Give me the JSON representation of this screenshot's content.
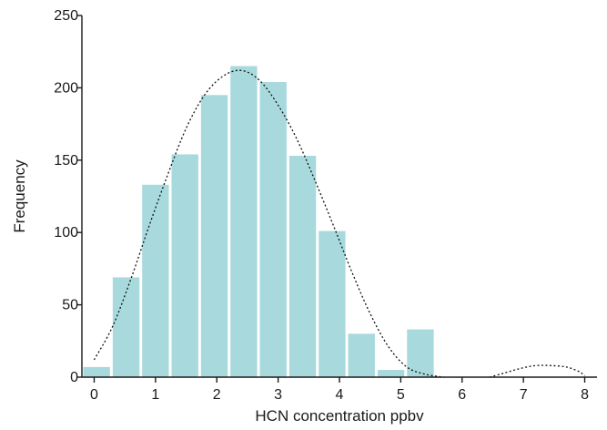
{
  "chart_data": {
    "type": "bar",
    "title": "",
    "xlabel": "HCN concentration ppbv",
    "ylabel": "Frequency",
    "xlim": [
      -0.2,
      8.2
    ],
    "ylim": [
      0,
      250
    ],
    "grid": false,
    "x_ticks": [
      0,
      1,
      2,
      3,
      4,
      5,
      6,
      7,
      8
    ],
    "y_ticks": [
      0,
      50,
      100,
      150,
      200,
      250
    ],
    "bar_color": "#a8d9dc",
    "bins": [
      {
        "x0": -0.2,
        "x1": 0.28,
        "value": 7
      },
      {
        "x0": 0.28,
        "x1": 0.76,
        "value": 69
      },
      {
        "x0": 0.76,
        "x1": 1.24,
        "value": 133
      },
      {
        "x0": 1.24,
        "x1": 1.72,
        "value": 154
      },
      {
        "x0": 1.72,
        "x1": 2.2,
        "value": 195
      },
      {
        "x0": 2.2,
        "x1": 2.68,
        "value": 215
      },
      {
        "x0": 2.68,
        "x1": 3.16,
        "value": 204
      },
      {
        "x0": 3.16,
        "x1": 3.64,
        "value": 153
      },
      {
        "x0": 3.64,
        "x1": 4.12,
        "value": 101
      },
      {
        "x0": 4.12,
        "x1": 4.6,
        "value": 30
      },
      {
        "x0": 4.6,
        "x1": 5.08,
        "value": 5
      },
      {
        "x0": 5.08,
        "x1": 5.56,
        "value": 33
      }
    ],
    "fit_curves": [
      {
        "style": "dotted",
        "color": "#111111",
        "points": [
          [
            0.0,
            12
          ],
          [
            0.3,
            35
          ],
          [
            0.6,
            68
          ],
          [
            0.9,
            105
          ],
          [
            1.2,
            140
          ],
          [
            1.5,
            172
          ],
          [
            1.8,
            195
          ],
          [
            2.1,
            208
          ],
          [
            2.4,
            212
          ],
          [
            2.7,
            205
          ],
          [
            3.0,
            188
          ],
          [
            3.3,
            165
          ],
          [
            3.6,
            136
          ],
          [
            3.9,
            105
          ],
          [
            4.2,
            73
          ],
          [
            4.5,
            44
          ],
          [
            4.8,
            21
          ],
          [
            5.1,
            7
          ],
          [
            5.4,
            2
          ],
          [
            5.7,
            0
          ]
        ]
      },
      {
        "style": "dotted",
        "color": "#111111",
        "points": [
          [
            6.45,
            0
          ],
          [
            6.7,
            3
          ],
          [
            6.95,
            6
          ],
          [
            7.2,
            8
          ],
          [
            7.45,
            8
          ],
          [
            7.7,
            7
          ],
          [
            7.9,
            4
          ],
          [
            8.0,
            1
          ]
        ]
      }
    ]
  }
}
